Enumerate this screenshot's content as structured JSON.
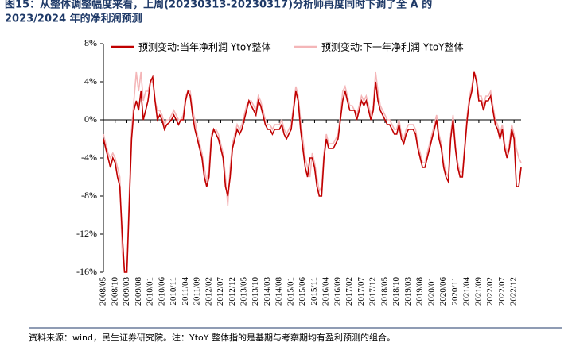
{
  "chart_data": {
    "type": "line",
    "title": "图15：从整体调整幅度来看，上周(20230313-20230317)分析师再度同时下调了全 A 的",
    "subtitle": "2023/2024 年的净利润预测",
    "note": "资料来源：wind，民生证券研究院。注：YtoY 整体指的是基期与考察期均有盈利预测的组合。",
    "categories": [
      "2008/05",
      null,
      null,
      null,
      null,
      "2008/10",
      null,
      null,
      null,
      null,
      "2009/03",
      null,
      null,
      null,
      null,
      "2009/08",
      null,
      null,
      null,
      null,
      "2010/01",
      null,
      null,
      null,
      null,
      "2010/06",
      null,
      null,
      null,
      null,
      "2010/11",
      null,
      null,
      null,
      null,
      "2011/04",
      null,
      null,
      null,
      null,
      "2011/09",
      null,
      null,
      null,
      null,
      "2012/02",
      null,
      null,
      null,
      null,
      "2012/07",
      null,
      null,
      null,
      null,
      "2012/12",
      null,
      null,
      null,
      null,
      "2013/05",
      null,
      null,
      null,
      null,
      "2013/10",
      null,
      null,
      null,
      null,
      "2014/03",
      null,
      null,
      null,
      null,
      "2014/08",
      null,
      null,
      null,
      null,
      "2015/01",
      null,
      null,
      null,
      null,
      "2015/06",
      null,
      null,
      null,
      null,
      "2015/11",
      null,
      null,
      null,
      null,
      "2016/04",
      null,
      null,
      null,
      null,
      "2016/09",
      null,
      null,
      null,
      null,
      "2017/02",
      null,
      null,
      null,
      null,
      "2017/07",
      null,
      null,
      null,
      null,
      "2017/12",
      null,
      null,
      null,
      null,
      "2018/05",
      null,
      null,
      null,
      null,
      "2018/10",
      null,
      null,
      null,
      null,
      "2019/03",
      null,
      null,
      null,
      null,
      "2019/08",
      null,
      null,
      null,
      null,
      "2020/01",
      null,
      null,
      null,
      null,
      "2020/06",
      null,
      null,
      null,
      null,
      "2020/11",
      null,
      null,
      null,
      null,
      "2021/04",
      null,
      null,
      null,
      null,
      "2021/09",
      null,
      null,
      null,
      null,
      "2022/02",
      null,
      null,
      null,
      null,
      "2022/07",
      null,
      null,
      null,
      null,
      "2022/12",
      null,
      null,
      null
    ],
    "series": [
      {
        "name": "预测变动:当年净利润 YtoY整体",
        "color": "#c00000",
        "values": [
          -2,
          -3,
          -4,
          -5,
          -4,
          -4.5,
          -6,
          -7,
          -12,
          -16,
          -16,
          -9,
          -2,
          1,
          2,
          1,
          3,
          0,
          1,
          2,
          4,
          4.5,
          2,
          0,
          0.5,
          0,
          -1,
          -0.5,
          -0.3,
          0,
          0.5,
          0,
          -0.5,
          0,
          0,
          2,
          3,
          2.5,
          0.5,
          -1,
          -2,
          -3,
          -4,
          -6,
          -7,
          -6,
          -2,
          -1,
          -1.5,
          -2,
          -3,
          -4,
          -7,
          -8,
          -6,
          -3,
          -2,
          -1,
          -1.5,
          -1,
          0,
          1,
          2,
          1.5,
          1,
          0.5,
          2,
          1.5,
          0.5,
          -0.5,
          -1,
          -1,
          -1.5,
          -1,
          -1,
          -1,
          -0.5,
          -1.5,
          -2,
          -1.5,
          -1,
          1,
          3,
          2,
          -1,
          -3,
          -5,
          -6,
          -4,
          -4,
          -5,
          -7,
          -8,
          -8,
          -4,
          -2,
          -3,
          -3,
          -3,
          -2.5,
          -2,
          0,
          2,
          3,
          2,
          1,
          1,
          1,
          0,
          1,
          2,
          1.5,
          2,
          1,
          0,
          1,
          4,
          2,
          1,
          0.5,
          0,
          -0.5,
          -0.5,
          -1,
          -1.5,
          -1.5,
          -0.5,
          -2,
          -2.5,
          -1.5,
          -1,
          -1,
          -1,
          -1.5,
          -3,
          -4,
          -5,
          -5,
          -4,
          -3,
          -2,
          -1,
          0,
          -2,
          -3,
          -5,
          -6,
          -6.5,
          -2,
          0,
          -3,
          -5,
          -6,
          -6,
          -3,
          0,
          2,
          3,
          5,
          4,
          2,
          2,
          1,
          2,
          2,
          2.5,
          1,
          -0.5,
          -1,
          -2,
          -1,
          -3,
          -4,
          -3,
          -1,
          -2,
          -7,
          -7,
          -5
        ]
      },
      {
        "name": "预测变动:下一年净利润 YtoY整体",
        "color": "#f4b6b8",
        "values": [
          -1.5,
          -2.5,
          -3.5,
          -4,
          -3.5,
          -4,
          -5,
          -6,
          -14,
          -16,
          -16,
          -8,
          -1,
          2,
          5,
          3,
          5,
          2,
          3,
          3,
          4,
          4,
          2,
          1,
          1,
          0.5,
          -0.5,
          0,
          0,
          0.5,
          1,
          0.5,
          0,
          0,
          0.5,
          2.5,
          3,
          3,
          1,
          0,
          -1.5,
          -2.5,
          -3.5,
          -5,
          -6.5,
          -5,
          -1.5,
          -1,
          -1,
          -1.5,
          -2.5,
          -3.5,
          -6,
          -9,
          -5,
          -2.5,
          -1.5,
          -0.5,
          -1,
          -0.5,
          0.5,
          1.5,
          2,
          2,
          1.5,
          1,
          2.5,
          2,
          1,
          0,
          -0.5,
          -0.5,
          -1,
          -0.5,
          -0.5,
          -0.5,
          0,
          -1,
          -1.5,
          -1,
          -0.5,
          1.5,
          3.5,
          2.5,
          0,
          -2,
          -4,
          -5,
          -6,
          -3.5,
          -4.5,
          -6,
          -7.5,
          -7,
          -3.5,
          -1.5,
          -2.5,
          -2.5,
          -2.5,
          -2,
          -1.5,
          0.5,
          3,
          3.5,
          2.5,
          1.5,
          1.5,
          1,
          0.5,
          1.5,
          2.5,
          2,
          2.5,
          1.5,
          0.5,
          1.5,
          5,
          3,
          1.5,
          1,
          0.5,
          0,
          0,
          -0.5,
          -1,
          -1,
          0,
          -1.5,
          -2,
          -1,
          -0.5,
          -0.5,
          -0.5,
          -1,
          -2.5,
          -3.5,
          -4.5,
          -4.5,
          -3.5,
          -2.5,
          -1.5,
          -0.5,
          0.5,
          -1.5,
          -2.5,
          -4.5,
          -5.5,
          -6,
          -1.5,
          0.5,
          -2.5,
          -4.5,
          -5.5,
          -5.5,
          -2.5,
          0.5,
          2.5,
          3.5,
          5,
          4.5,
          2.5,
          2.5,
          1.5,
          2.5,
          2.5,
          3,
          1.5,
          0,
          -0.5,
          -1.5,
          -0.5,
          -2.5,
          -3.5,
          -2.5,
          -0.5,
          -1.5,
          -3,
          -4,
          -4.5
        ]
      }
    ],
    "ylim": [
      -16,
      8
    ],
    "yticks": [
      {
        "value": -16,
        "label": "-16%"
      },
      {
        "value": -12,
        "label": "-12%"
      },
      {
        "value": -8,
        "label": "-8%"
      },
      {
        "value": -4,
        "label": "-4%"
      },
      {
        "value": 0,
        "label": "0%"
      },
      {
        "value": 4,
        "label": "4%"
      },
      {
        "value": 8,
        "label": "8%"
      }
    ],
    "legend": "top"
  }
}
